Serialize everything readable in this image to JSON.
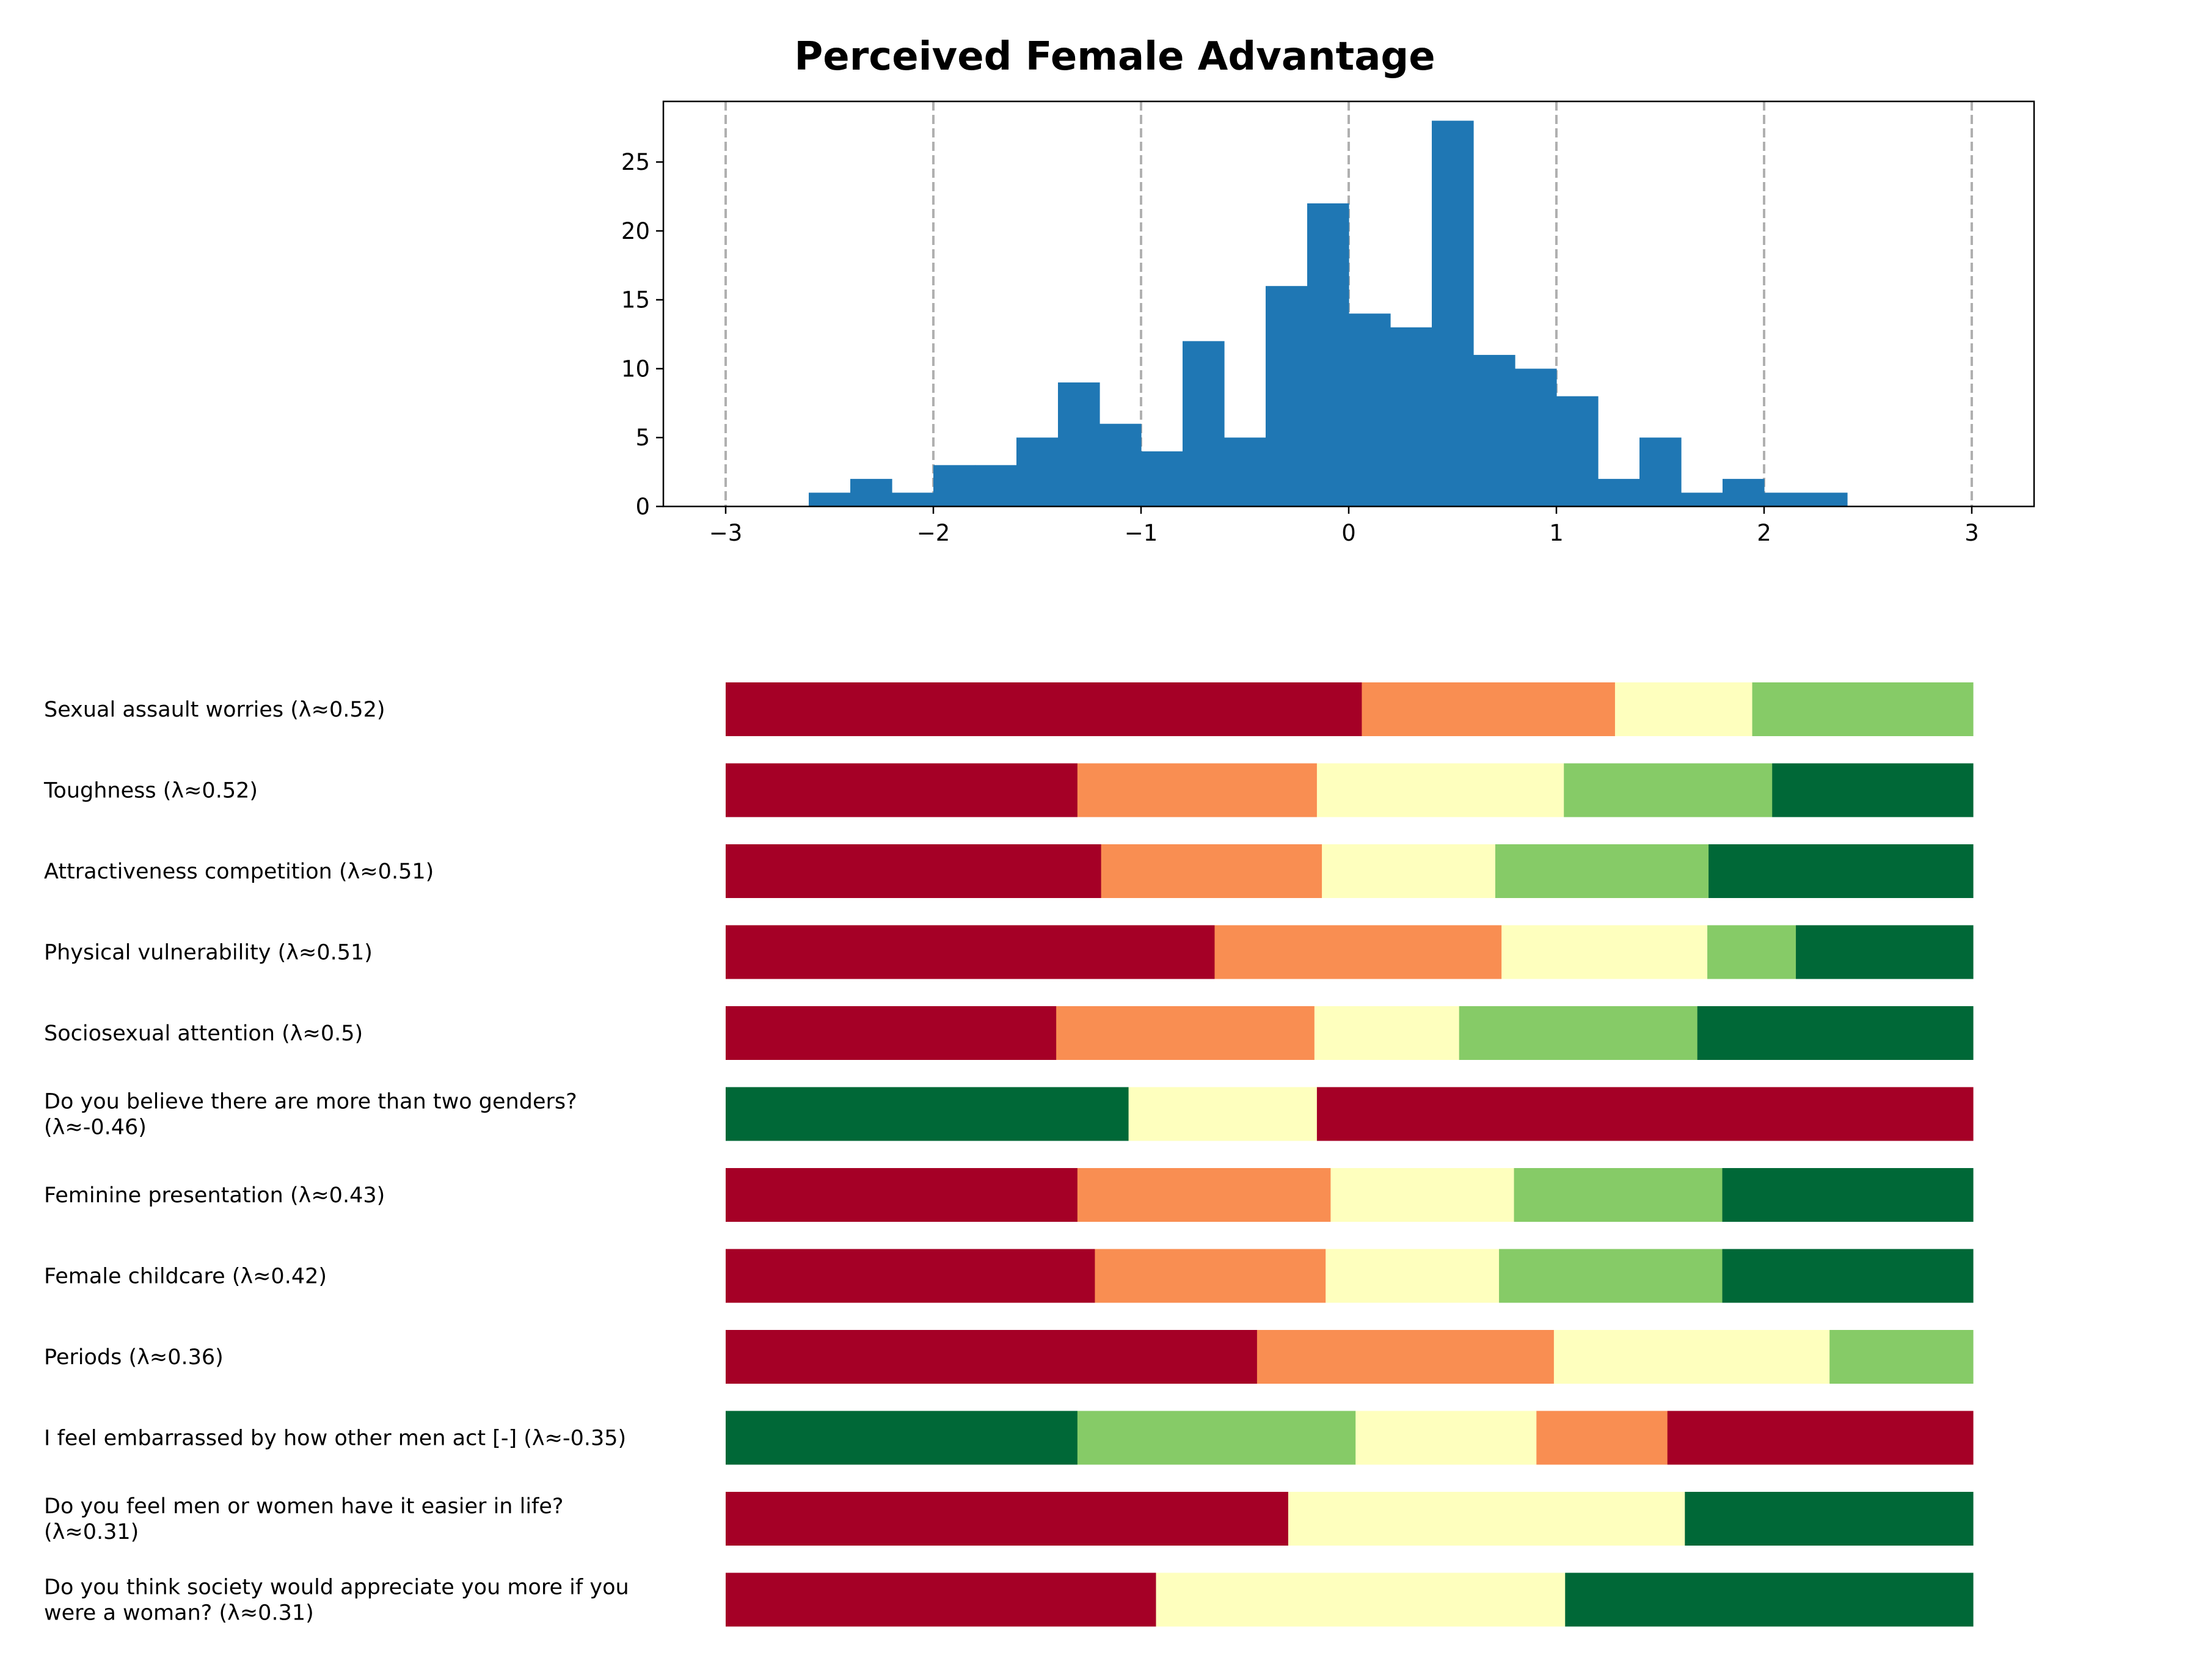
{
  "chart_data": [
    {
      "type": "bar",
      "subtype": "histogram",
      "title": "Perceived Female Advantage",
      "xlabel": "",
      "ylabel": "",
      "xlim": [
        -3.3,
        3.3
      ],
      "ylim": [
        0,
        29.4
      ],
      "bin_width": 0.2,
      "bin_starts": [
        -2.6,
        -2.4,
        -2.2,
        -2.0,
        -1.8,
        -1.6,
        -1.4,
        -1.2,
        -1.0,
        -0.8,
        -0.6,
        -0.4,
        -0.2,
        0.0,
        0.2,
        0.4,
        0.6,
        0.8,
        1.0,
        1.2,
        1.4,
        1.6,
        1.8,
        2.0,
        2.2
      ],
      "values": [
        1,
        2,
        1,
        3,
        3,
        5,
        9,
        6,
        4,
        12,
        5,
        16,
        22,
        14,
        13,
        28,
        11,
        10,
        8,
        2,
        5,
        1,
        2,
        1,
        1
      ],
      "x_ticks": [
        -3,
        -2,
        -1,
        0,
        1,
        2,
        3
      ],
      "x_tick_labels": [
        "−3",
        "−2",
        "−1",
        "0",
        "1",
        "2",
        "3"
      ],
      "y_ticks": [
        0,
        5,
        10,
        15,
        20,
        25
      ],
      "y_tick_labels": [
        "0",
        "5",
        "10",
        "15",
        "20",
        "25"
      ],
      "grid": "vertical dashed at x ticks",
      "color": "#1f77b4"
    },
    {
      "type": "bar",
      "subtype": "horizontal-stacked-100",
      "xlim": [
        0,
        1
      ],
      "categories": [
        "Sexual assault worries (λ≈0.52)",
        "Toughness (λ≈0.52)",
        "Attractiveness competition (λ≈0.51)",
        "Physical vulnerability (λ≈0.51)",
        "Sociosexual attention (λ≈0.5)",
        "Do you believe there are more than two genders?\n(λ≈-0.46)",
        "Feminine presentation (λ≈0.43)",
        "Female childcare (λ≈0.42)",
        "Periods (λ≈0.36)",
        "I feel embarrassed by how other men act [-] (λ≈-0.35)",
        "Do you feel men or women have it easier in life?\n(λ≈0.31)",
        "Do you think society would appreciate you more if you\nwere a woman? (λ≈0.31)"
      ],
      "segments": [
        [
          {
            "color": "#a50026",
            "value": 0.51
          },
          {
            "color": "#f98e52",
            "value": 0.203
          },
          {
            "color": "#feffbe",
            "value": 0.11
          },
          {
            "color": "#86cb67",
            "value": 0.177
          }
        ],
        [
          {
            "color": "#a50026",
            "value": 0.282
          },
          {
            "color": "#f98e52",
            "value": 0.192
          },
          {
            "color": "#feffbe",
            "value": 0.198
          },
          {
            "color": "#86cb67",
            "value": 0.167
          },
          {
            "color": "#006837",
            "value": 0.161
          }
        ],
        [
          {
            "color": "#a50026",
            "value": 0.301
          },
          {
            "color": "#f98e52",
            "value": 0.177
          },
          {
            "color": "#feffbe",
            "value": 0.139
          },
          {
            "color": "#86cb67",
            "value": 0.171
          },
          {
            "color": "#006837",
            "value": 0.212
          }
        ],
        [
          {
            "color": "#a50026",
            "value": 0.392
          },
          {
            "color": "#f98e52",
            "value": 0.23
          },
          {
            "color": "#feffbe",
            "value": 0.165
          },
          {
            "color": "#86cb67",
            "value": 0.071
          },
          {
            "color": "#006837",
            "value": 0.142
          }
        ],
        [
          {
            "color": "#a50026",
            "value": 0.265
          },
          {
            "color": "#f98e52",
            "value": 0.207
          },
          {
            "color": "#feffbe",
            "value": 0.116
          },
          {
            "color": "#86cb67",
            "value": 0.191
          },
          {
            "color": "#006837",
            "value": 0.221
          }
        ],
        [
          {
            "color": "#006837",
            "value": 0.323
          },
          {
            "color": "#feffbe",
            "value": 0.151
          },
          {
            "color": "#a50026",
            "value": 0.526
          }
        ],
        [
          {
            "color": "#a50026",
            "value": 0.282
          },
          {
            "color": "#f98e52",
            "value": 0.203
          },
          {
            "color": "#feffbe",
            "value": 0.147
          },
          {
            "color": "#86cb67",
            "value": 0.167
          },
          {
            "color": "#006837",
            "value": 0.201
          }
        ],
        [
          {
            "color": "#a50026",
            "value": 0.296
          },
          {
            "color": "#f98e52",
            "value": 0.185
          },
          {
            "color": "#feffbe",
            "value": 0.139
          },
          {
            "color": "#86cb67",
            "value": 0.179
          },
          {
            "color": "#006837",
            "value": 0.201
          }
        ],
        [
          {
            "color": "#a50026",
            "value": 0.426
          },
          {
            "color": "#f98e52",
            "value": 0.238
          },
          {
            "color": "#feffbe",
            "value": 0.221
          },
          {
            "color": "#86cb67",
            "value": 0.115
          }
        ],
        [
          {
            "color": "#006837",
            "value": 0.282
          },
          {
            "color": "#86cb67",
            "value": 0.223
          },
          {
            "color": "#feffbe",
            "value": 0.145
          },
          {
            "color": "#f98e52",
            "value": 0.105
          },
          {
            "color": "#a50026",
            "value": 0.245
          }
        ],
        [
          {
            "color": "#a50026",
            "value": 0.451
          },
          {
            "color": "#feffbe",
            "value": 0.318
          },
          {
            "color": "#006837",
            "value": 0.231
          }
        ],
        [
          {
            "color": "#a50026",
            "value": 0.345
          },
          {
            "color": "#feffbe",
            "value": 0.328
          },
          {
            "color": "#006837",
            "value": 0.327
          }
        ]
      ]
    }
  ]
}
